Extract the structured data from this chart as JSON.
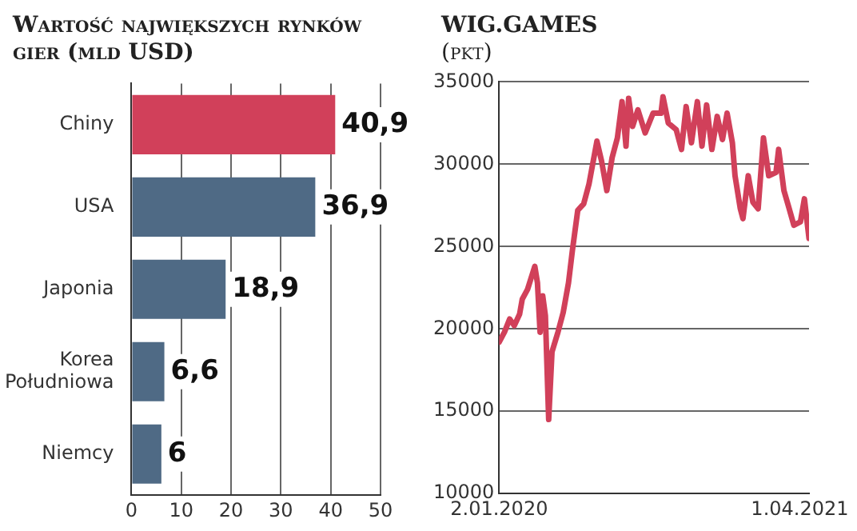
{
  "chart_data": [
    {
      "type": "bar",
      "title": "Wartość największych rynków gier (mld USD)",
      "orientation": "horizontal",
      "categories": [
        "Chiny",
        "USA",
        "Japonia",
        "Korea Południowa",
        "Niemcy"
      ],
      "values": [
        40.9,
        36.9,
        18.9,
        6.6,
        6
      ],
      "colors": [
        "#d1405a",
        "#4f6a85",
        "#4f6a85",
        "#4f6a85",
        "#4f6a85"
      ],
      "value_labels": [
        "40,9",
        "36,9",
        "18,9",
        "6,6",
        "6"
      ],
      "xlim": [
        0,
        50
      ],
      "xticks": [
        0,
        10,
        20,
        30,
        40,
        50
      ],
      "grid": "x",
      "legend": false
    },
    {
      "type": "line",
      "title": "WIG.GAMES",
      "subtitle": "(pkt)",
      "color": "#d1405a",
      "marker": "none",
      "grid": "y",
      "legend": false,
      "x": [
        "2020-01-02",
        "2020-01-10",
        "2020-01-18",
        "2020-01-25",
        "2020-02-02",
        "2020-02-06",
        "2020-02-14",
        "2020-02-25",
        "2020-02-29",
        "2020-03-04",
        "2020-03-08",
        "2020-03-12",
        "2020-03-17",
        "2020-03-22",
        "2020-03-31",
        "2020-04-08",
        "2020-04-16",
        "2020-04-22",
        "2020-04-30",
        "2020-05-09",
        "2020-05-17",
        "2020-05-29",
        "2020-06-05",
        "2020-06-13",
        "2020-06-21",
        "2020-06-29",
        "2020-07-06",
        "2020-07-12",
        "2020-07-16",
        "2020-07-22",
        "2020-07-30",
        "2020-08-10",
        "2020-08-22",
        "2020-09-03",
        "2020-09-06",
        "2020-09-14",
        "2020-09-26",
        "2020-10-04",
        "2020-10-11",
        "2020-10-19",
        "2020-10-28",
        "2020-11-04",
        "2020-11-11",
        "2020-11-19",
        "2020-11-27",
        "2020-12-05",
        "2020-12-12",
        "2020-12-20",
        "2020-12-24",
        "2021-01-01",
        "2021-01-05",
        "2021-01-13",
        "2021-01-20",
        "2021-01-28",
        "2021-02-05",
        "2021-02-13",
        "2021-02-24",
        "2021-02-28",
        "2021-03-08",
        "2021-03-16",
        "2021-03-23",
        "2021-04-02",
        "2021-04-08",
        "2021-04-15"
      ],
      "values": [
        19200,
        19800,
        20600,
        20200,
        20900,
        21800,
        22400,
        23800,
        22800,
        19800,
        22000,
        20800,
        14500,
        18600,
        19800,
        21000,
        22800,
        24800,
        27200,
        27600,
        28800,
        31400,
        30200,
        28400,
        30400,
        31600,
        33800,
        31100,
        34000,
        32300,
        33300,
        31900,
        33100,
        33100,
        34100,
        32500,
        32100,
        30900,
        33500,
        31300,
        33800,
        31100,
        33600,
        30900,
        32900,
        31500,
        33100,
        31300,
        29300,
        27300,
        26700,
        29300,
        27700,
        27300,
        31600,
        29300,
        29500,
        30900,
        28400,
        27300,
        26300,
        26500,
        27900,
        25500
      ],
      "xlim": [
        "2020-01-02",
        "2021-04-15"
      ],
      "xticks": [
        {
          "value": "2020-01-02",
          "label": "2.01.2020"
        },
        {
          "value": "2021-04-01",
          "label": "1.04.2021"
        }
      ],
      "ylim": [
        10000,
        35000
      ],
      "yticks": [
        10000,
        15000,
        20000,
        25000,
        30000,
        35000
      ]
    }
  ]
}
